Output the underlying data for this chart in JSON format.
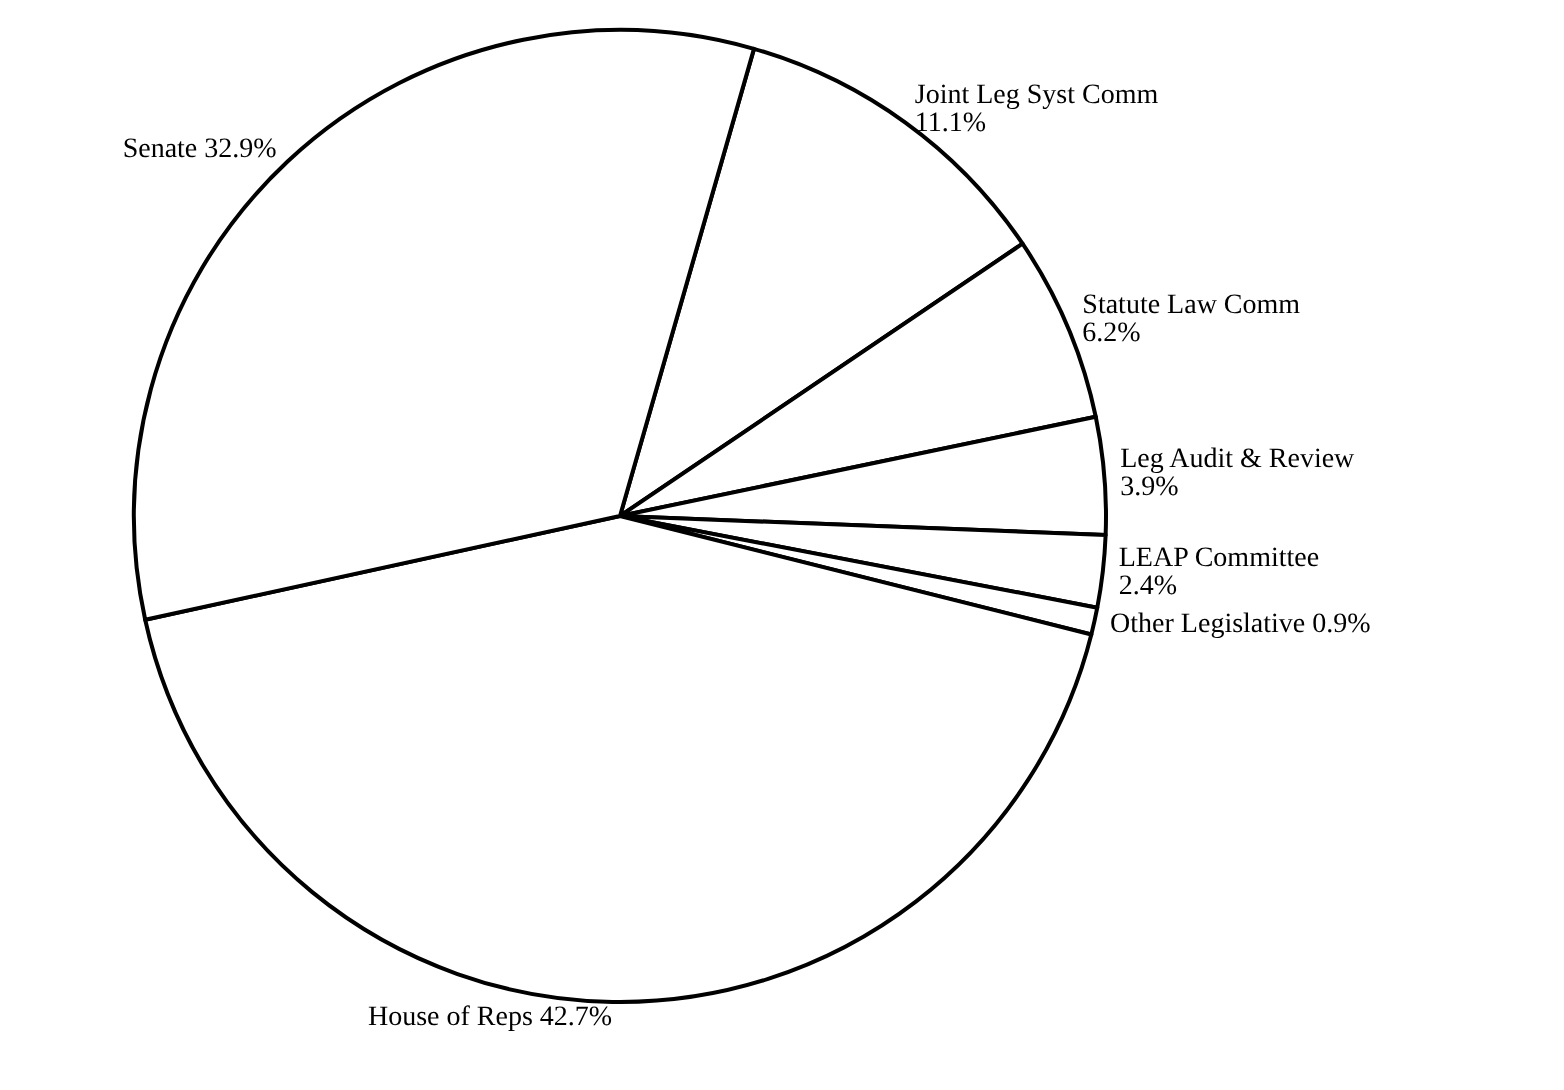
{
  "chart_data": {
    "type": "pie",
    "categories": [
      "Joint Leg Syst Comm",
      "Statute Law Comm",
      "Leg Audit & Review",
      "LEAP Committee",
      "Other Legislative",
      "House of Reps",
      "Senate"
    ],
    "values": [
      11.1,
      6.2,
      3.9,
      2.4,
      0.9,
      42.7,
      32.9
    ],
    "colors": [
      "#ffffff",
      "#ffffff",
      "#ffffff",
      "#ffffff",
      "#ffffff",
      "#ffffff",
      "#ffffff"
    ],
    "value_labels": [
      "11.1%",
      "6.2%",
      "3.9%",
      "2.4%",
      "0.9%",
      "42.7%",
      "32.9%"
    ],
    "legend": false
  }
}
